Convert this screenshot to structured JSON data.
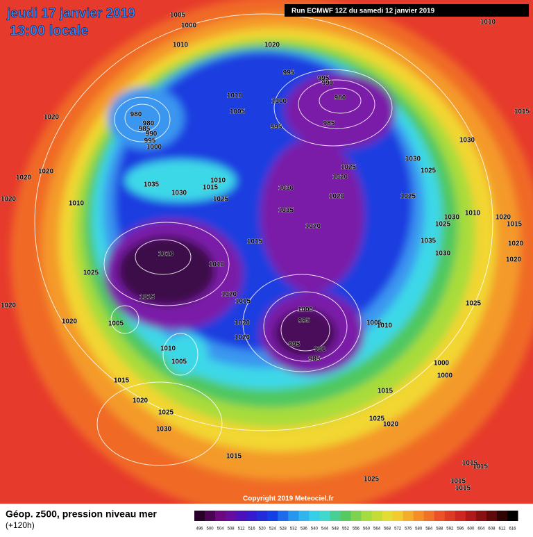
{
  "header": {
    "date": "jeudi 17 janvier 2019",
    "time": "13:00 locale",
    "run": "Run ECMWF 12Z du samedi 12 janvier 2019"
  },
  "footer": {
    "copyright": "Copyright 2019 Meteociel.fr",
    "field": "Géop. z500, pression niveau mer",
    "lead": "(+120h)"
  },
  "legend": {
    "values": [
      496,
      500,
      504,
      508,
      512,
      516,
      520,
      524,
      528,
      532,
      536,
      540,
      544,
      548,
      552,
      556,
      560,
      564,
      568,
      572,
      576,
      580,
      584,
      588,
      592,
      596,
      600,
      604,
      608,
      612,
      616
    ]
  },
  "isobar_labels": [
    "1005",
    "1000",
    "1010",
    "1020",
    "1010",
    "995",
    "995",
    "990",
    "980",
    "1010",
    "1000",
    "1005",
    "985",
    "995",
    "980",
    "980",
    "985",
    "990",
    "995",
    "1000",
    "1020",
    "1015",
    "1030",
    "1020",
    "1020",
    "1020",
    "1010",
    "1035",
    "1030",
    "1015",
    "1010",
    "1025",
    "1030",
    "1025",
    "1020",
    "1020",
    "1035",
    "1030",
    "1025",
    "1025",
    "1020",
    "1015",
    "1010",
    "1010",
    "1025",
    "1015",
    "1020",
    "1015",
    "1000",
    "995",
    "1020",
    "1020",
    "1005",
    "1020",
    "995",
    "990",
    "985",
    "1005",
    "1010",
    "1010",
    "1005",
    "1000",
    "1000",
    "1015",
    "1015",
    "1020",
    "1025",
    "1030",
    "1025",
    "1020",
    "1015",
    "1025",
    "1010",
    "1030",
    "1025",
    "1035",
    "1030",
    "1020",
    "1015",
    "1020",
    "1020",
    "1025",
    "1015",
    "1015",
    "1015",
    "1015",
    "1020"
  ]
}
